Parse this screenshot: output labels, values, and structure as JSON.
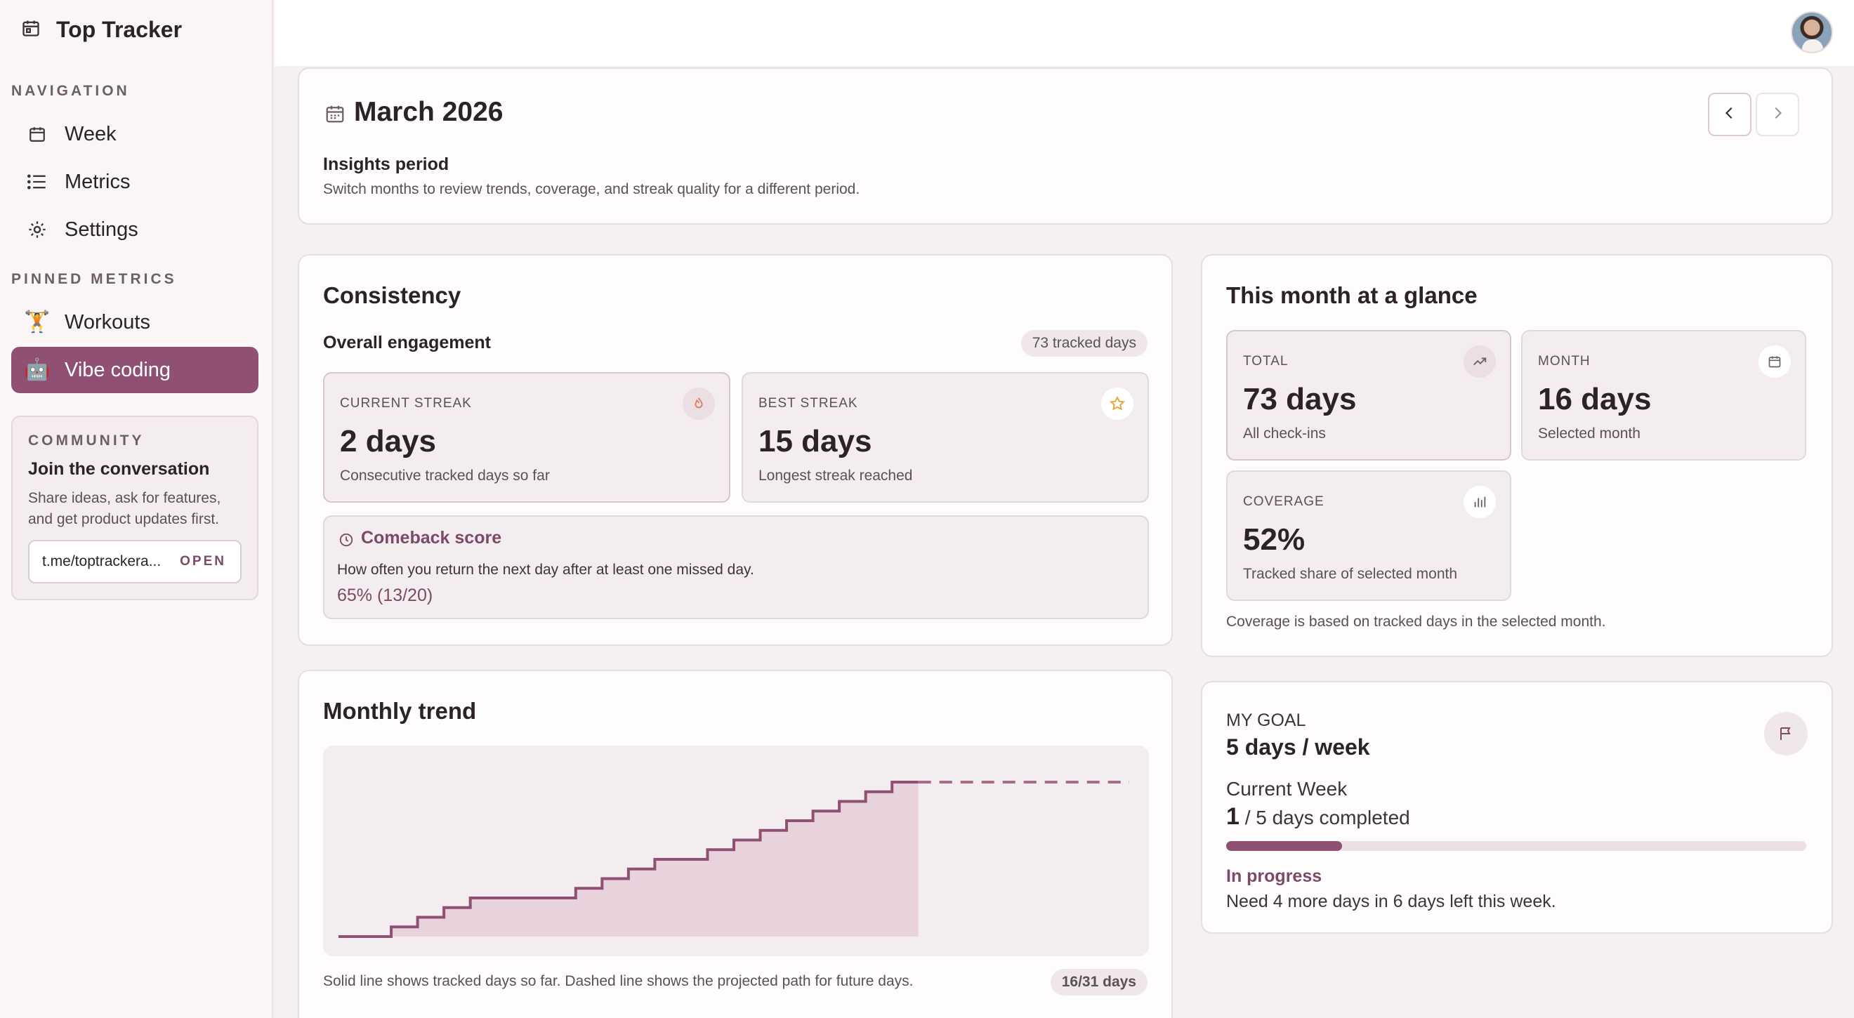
{
  "app": {
    "title": "Top Tracker"
  },
  "sidebar": {
    "navigation_label": "NAVIGATION",
    "nav_items": [
      {
        "label": "Week",
        "icon": "calendar-icon"
      },
      {
        "label": "Metrics",
        "icon": "list-icon"
      },
      {
        "label": "Settings",
        "icon": "gear-icon"
      }
    ],
    "pinned_label": "PINNED METRICS",
    "pinned_items": [
      {
        "label": "Workouts",
        "emoji": "🏋️",
        "active": false
      },
      {
        "label": "Vibe coding",
        "emoji": "🤖",
        "active": true
      }
    ],
    "community": {
      "label": "COMMUNITY",
      "title": "Join the conversation",
      "description": "Share ideas, ask for features, and get product updates first.",
      "url": "t.me/toptrackera...",
      "open_label": "OPEN"
    }
  },
  "month": {
    "title": "March 2026",
    "insights_title": "Insights period",
    "insights_desc": "Switch months to review trends, coverage, and streak quality for a different period."
  },
  "consistency": {
    "title": "Consistency",
    "subhead": "Overall engagement",
    "tracked_pill": "73 tracked days",
    "current_streak": {
      "label": "CURRENT STREAK",
      "value": "2 days",
      "sub": "Consecutive tracked days so far"
    },
    "best_streak": {
      "label": "BEST STREAK",
      "value": "15 days",
      "sub": "Longest streak reached"
    },
    "comeback": {
      "title": "Comeback score",
      "description": "How often you return the next day after at least one missed day.",
      "value": "65% (13/20)"
    }
  },
  "glance": {
    "title": "This month at a glance",
    "total": {
      "label": "TOTAL",
      "value": "73 days",
      "sub": "All check-ins"
    },
    "month": {
      "label": "MONTH",
      "value": "16 days",
      "sub": "Selected month"
    },
    "coverage": {
      "label": "COVERAGE",
      "value": "52%",
      "sub": "Tracked share of selected month"
    },
    "note": "Coverage is based on tracked days in the selected month."
  },
  "trend": {
    "title": "Monthly trend",
    "note": "Solid line shows tracked days so far. Dashed line shows the projected path for future days.",
    "pill": "16/31 days"
  },
  "goal": {
    "label": "MY GOAL",
    "value": "5 days / week",
    "current_week_label": "Current Week",
    "completed_count": "1",
    "completed_suffix": " / 5 days completed",
    "progress": 0.2,
    "status_title": "In progress",
    "status_desc": "Need 4 more days in 6 days left this week."
  },
  "colors": {
    "accent": "#8f5073",
    "accent_text": "#7b4a66"
  },
  "chart_data": {
    "type": "area",
    "title": "Monthly trend",
    "x": [
      1,
      2,
      3,
      4,
      5,
      6,
      7,
      8,
      9,
      10,
      11,
      12,
      13,
      14,
      15,
      16,
      17,
      18,
      19,
      20,
      21,
      22,
      23,
      24,
      25,
      26,
      27,
      28,
      29,
      30,
      31
    ],
    "series": [
      {
        "values": [
          0,
          0,
          1,
          2,
          3,
          4,
          4,
          4,
          4,
          5,
          6,
          7,
          8,
          8,
          9,
          10,
          11,
          12,
          13,
          14,
          15,
          16,
          16,
          16,
          16,
          16,
          16,
          16,
          16,
          16,
          16
        ]
      }
    ],
    "tracked_through_day": 23,
    "projected_after_day": 23,
    "xlim": [
      1,
      31
    ],
    "grid": false
  }
}
